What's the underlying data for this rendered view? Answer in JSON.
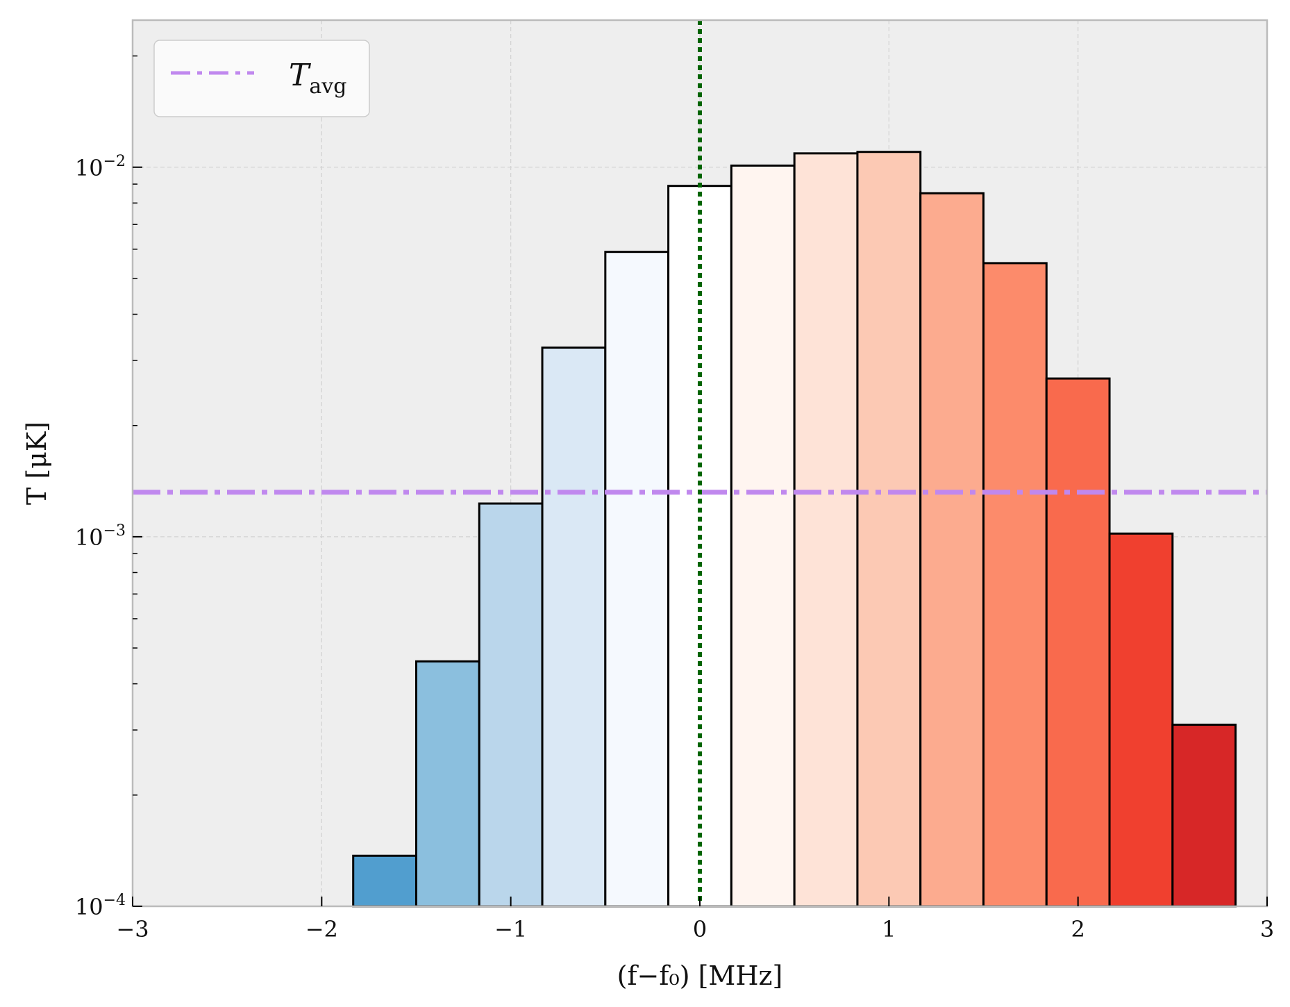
{
  "chart_data": {
    "type": "bar",
    "title": "",
    "xlabel": "(f−f₀)  [MHz]",
    "ylabel": "T [μK]",
    "xlim": [
      -3,
      3
    ],
    "ylim": [
      0.0001,
      0.025
    ],
    "yscale": "log",
    "grid": true,
    "x_ticks": [
      {
        "value": -3,
        "label": "−3"
      },
      {
        "value": -2,
        "label": "−2"
      },
      {
        "value": -1,
        "label": "−1"
      },
      {
        "value": 0,
        "label": "0"
      },
      {
        "value": 1,
        "label": "1"
      },
      {
        "value": 2,
        "label": "2"
      },
      {
        "value": 3,
        "label": "3"
      }
    ],
    "y_ticks": [
      {
        "value": 0.0001,
        "base": "10",
        "exp": "−4"
      },
      {
        "value": 0.001,
        "base": "10",
        "exp": "−3"
      },
      {
        "value": 0.01,
        "base": "10",
        "exp": "−2"
      }
    ],
    "bin_width": 0.3333,
    "bars": [
      {
        "center": -1.6667,
        "value": 0.000137,
        "color": "#519ecf"
      },
      {
        "center": -1.3333,
        "value": 0.00046,
        "color": "#8bbfde"
      },
      {
        "center": -1.0,
        "value": 0.00123,
        "color": "#bad6eb"
      },
      {
        "center": -0.6667,
        "value": 0.00325,
        "color": "#dae8f5"
      },
      {
        "center": -0.3333,
        "value": 0.0059,
        "color": "#f5f9fe"
      },
      {
        "center": 0.0,
        "value": 0.0089,
        "color": "#ffffff"
      },
      {
        "center": 0.3333,
        "value": 0.0101,
        "color": "#fff5f0"
      },
      {
        "center": 0.6667,
        "value": 0.0109,
        "color": "#fee3d7"
      },
      {
        "center": 1.0,
        "value": 0.011,
        "color": "#fcc9b4"
      },
      {
        "center": 1.3333,
        "value": 0.0085,
        "color": "#fcab8f"
      },
      {
        "center": 1.6667,
        "value": 0.0055,
        "color": "#fc8b6b"
      },
      {
        "center": 2.0,
        "value": 0.00268,
        "color": "#f96a4d"
      },
      {
        "center": 2.3333,
        "value": 0.00102,
        "color": "#f0402f"
      },
      {
        "center": 2.6667,
        "value": 0.00031,
        "color": "#d72727"
      }
    ],
    "reference_lines": {
      "T_avg": {
        "value": 0.00132,
        "color": "#c088ee",
        "style": "dash-dot"
      },
      "f0": {
        "value": 0,
        "color": "#006400",
        "style": "dotted"
      }
    },
    "legend": {
      "position": "top-left",
      "entries": [
        {
          "label_main": "T",
          "label_sub": "avg",
          "color": "#c088ee"
        }
      ]
    }
  }
}
